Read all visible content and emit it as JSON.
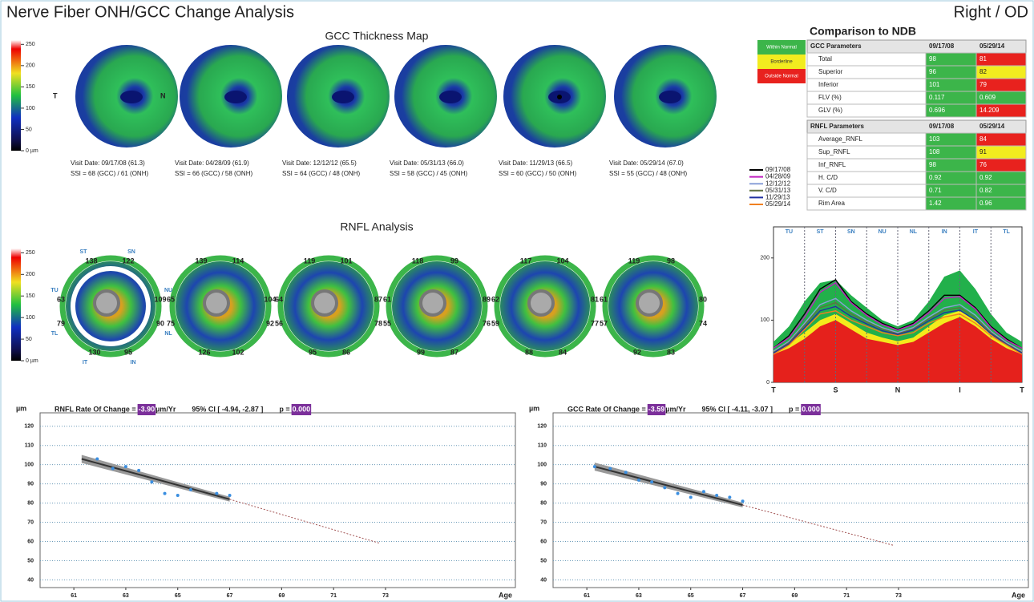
{
  "header": {
    "title": "Nerve Fiber ONH/GCC Change Analysis",
    "eye": "Right / OD"
  },
  "legend": [
    {
      "label": "Within Normal",
      "color": "#3cb54a"
    },
    {
      "label": "Borderline",
      "color": "#f2ec1f"
    },
    {
      "label": "Outside Normal",
      "color": "#e8221e"
    }
  ],
  "gcc_map": {
    "title": "GCC Thickness Map",
    "side_labels": [
      "T",
      "N"
    ],
    "colorbar": {
      "lim": [
        0,
        260
      ],
      "ticks": [
        250,
        200,
        150,
        100,
        50,
        {
          "value": 0,
          "label": "0 µm"
        }
      ]
    },
    "visits": [
      {
        "date": "Visit Date: 09/17/08 (61.3)",
        "ssi": "SSI = 68 (GCC) / 61 (ONH)"
      },
      {
        "date": "Visit Date: 04/28/09 (61.9)",
        "ssi": "SSI = 66 (GCC) / 58 (ONH)"
      },
      {
        "date": "Visit Date: 12/12/12 (65.5)",
        "ssi": "SSI = 64 (GCC) / 48 (ONH)"
      },
      {
        "date": "Visit Date: 05/31/13 (66.0)",
        "ssi": "SSI = 58 (GCC) / 45 (ONH)"
      },
      {
        "date": "Visit Date: 11/29/13 (66.5)",
        "ssi": "SSI = 60 (GCC) / 50 (ONH)"
      },
      {
        "date": "Visit Date: 05/29/14 (67.0)",
        "ssi": "SSI = 55 (GCC) / 48 (ONH)"
      }
    ]
  },
  "ndb": {
    "title": "Comparison to NDB",
    "gcc": {
      "header": [
        "GCC Parameters",
        "09/17/08",
        "05/29/14"
      ],
      "rows": [
        [
          "Total",
          "98",
          "81"
        ],
        [
          "Superior",
          "96",
          "82"
        ],
        [
          "Inferior",
          "101",
          "79"
        ],
        [
          "FLV (%)",
          "0.117",
          "0.609"
        ],
        [
          "GLV (%)",
          "0.696",
          "14.209"
        ]
      ],
      "status": [
        [
          0,
          2
        ],
        [
          0,
          1
        ],
        [
          0,
          2
        ],
        [
          0,
          0
        ],
        [
          0,
          2
        ]
      ]
    },
    "rnfl": {
      "header": [
        "RNFL Parameters",
        "09/17/08",
        "05/29/14"
      ],
      "rows": [
        [
          "Average_RNFL",
          "103",
          "84"
        ],
        [
          "Sup_RNFL",
          "108",
          "91"
        ],
        [
          "Inf_RNFL",
          "98",
          "76"
        ],
        [
          "H. C/D",
          "0.92",
          "0.92"
        ],
        [
          "V. C/D",
          "0.71",
          "0.82"
        ],
        [
          "Rim Area",
          "1.42",
          "0.96"
        ]
      ],
      "status": [
        [
          0,
          2
        ],
        [
          0,
          1
        ],
        [
          0,
          2
        ],
        [
          0,
          0
        ],
        [
          0,
          0
        ],
        [
          0,
          0
        ]
      ]
    }
  },
  "rnfl_map": {
    "title": "RNFL Analysis",
    "colorbar": {
      "lim": [
        0,
        260
      ],
      "ticks": [
        250,
        200,
        150,
        100,
        50,
        {
          "value": 0,
          "label": "0 µm"
        }
      ]
    },
    "sector_names": [
      "ST",
      "SN",
      "TU",
      "NU",
      "TL",
      "NL",
      "IT",
      "IN"
    ],
    "maps": [
      [
        "138",
        "122",
        "63",
        "109",
        "79",
        "90",
        "130",
        "95"
      ],
      [
        "139",
        "114",
        "65",
        "104",
        "75",
        "92",
        "126",
        "102"
      ],
      [
        "119",
        "101",
        "64",
        "87",
        "56",
        "78",
        "95",
        "86"
      ],
      [
        "118",
        "99",
        "61",
        "89",
        "55",
        "76",
        "99",
        "87"
      ],
      [
        "117",
        "104",
        "62",
        "81",
        "59",
        "77",
        "88",
        "84"
      ],
      [
        "119",
        "98",
        "61",
        "80",
        "57",
        "74",
        "92",
        "83"
      ]
    ]
  },
  "chart_data": [
    {
      "type": "line",
      "categories": [
        "T",
        null,
        null,
        null,
        "S",
        null,
        null,
        null,
        "N",
        null,
        null,
        null,
        "I",
        null,
        null,
        null,
        "T"
      ],
      "sector_labels": [
        "TU",
        "ST",
        "SN",
        "NU",
        "NL",
        "IN",
        "IT",
        "TL"
      ],
      "ylim": [
        0,
        250
      ],
      "yticks": [
        0,
        100,
        200
      ],
      "bands": [
        {
          "color": "#22b04b",
          "values": [
            65,
            90,
            130,
            160,
            165,
            140,
            120,
            100,
            90,
            100,
            130,
            170,
            180,
            150,
            110,
            80,
            65
          ]
        },
        {
          "color": "#f4ea1c",
          "values": [
            50,
            62,
            80,
            100,
            110,
            95,
            80,
            72,
            66,
            72,
            90,
            108,
            115,
            100,
            80,
            62,
            50
          ]
        },
        {
          "color": "#e5211c",
          "values": [
            45,
            55,
            70,
            90,
            100,
            85,
            70,
            65,
            60,
            65,
            80,
            95,
            105,
            90,
            70,
            55,
            45
          ]
        }
      ],
      "series": [
        {
          "name": "09/17/08",
          "color": "#000000",
          "values": [
            55,
            75,
            110,
            150,
            165,
            130,
            110,
            95,
            85,
            95,
            115,
            140,
            140,
            120,
            90,
            70,
            55
          ]
        },
        {
          "name": "04/28/09",
          "color": "#c020c0",
          "values": [
            55,
            72,
            105,
            145,
            160,
            128,
            108,
            93,
            84,
            93,
            112,
            135,
            138,
            118,
            88,
            68,
            55
          ]
        },
        {
          "name": "12/12/12",
          "color": "#8aa0d8",
          "values": [
            50,
            66,
            95,
            125,
            135,
            115,
            100,
            88,
            80,
            88,
            105,
            120,
            125,
            108,
            82,
            64,
            50
          ]
        },
        {
          "name": "05/31/13",
          "color": "#607040",
          "values": [
            48,
            64,
            92,
            120,
            128,
            110,
            97,
            86,
            78,
            86,
            102,
            116,
            120,
            104,
            80,
            62,
            48
          ]
        },
        {
          "name": "11/29/13",
          "color": "#2030a0",
          "values": [
            47,
            62,
            88,
            115,
            122,
            106,
            94,
            83,
            77,
            84,
            99,
            112,
            116,
            100,
            78,
            61,
            47
          ]
        },
        {
          "name": "05/29/14",
          "color": "#f08020",
          "values": [
            45,
            60,
            85,
            110,
            115,
            100,
            90,
            80,
            75,
            80,
            95,
            105,
            110,
            95,
            75,
            60,
            45
          ]
        }
      ]
    },
    {
      "type": "scatter",
      "title": "RNFL Rate Of Change =",
      "rate": "-3.90",
      "rate_unit": "µm/Yr",
      "ci": "95% CI [ -4.94, -2.87 ]",
      "p_label": "p =",
      "p_value": "0.000",
      "ylabel": "µm",
      "xlabel": "Age",
      "xlim": [
        59.7,
        78
      ],
      "ylim": [
        36,
        127
      ],
      "xticks": [
        61,
        63,
        65,
        67,
        69,
        71,
        73
      ],
      "yticks": [
        40,
        50,
        60,
        70,
        80,
        90,
        100,
        110,
        120
      ],
      "color": "#3a8ee0",
      "x": [
        61.9,
        62.5,
        63,
        63.5,
        64,
        64.5,
        65,
        65.5,
        66.5,
        67
      ],
      "values": [
        103,
        98,
        99,
        97,
        91,
        85,
        84,
        87,
        85,
        84
      ],
      "trend": {
        "x": [
          61.3,
          67
        ],
        "values": [
          103,
          82
        ]
      },
      "projection": {
        "x": [
          67,
          72.8
        ],
        "values": [
          82,
          59
        ]
      }
    },
    {
      "type": "scatter",
      "title": "GCC Rate Of Change =",
      "rate": "-3.59",
      "rate_unit": "µm/Yr",
      "ci": "95% CI [ -4.11, -3.07 ]",
      "p_label": "p =",
      "p_value": "0.000",
      "ylabel": "µm",
      "xlabel": "Age",
      "xlim": [
        59.7,
        78
      ],
      "ylim": [
        36,
        127
      ],
      "xticks": [
        61,
        63,
        65,
        67,
        69,
        71,
        73
      ],
      "yticks": [
        40,
        50,
        60,
        70,
        80,
        90,
        100,
        110,
        120
      ],
      "color": "#3a8ee0",
      "x": [
        61.3,
        61.9,
        62.5,
        63,
        63.5,
        64,
        64.5,
        65,
        65.5,
        66,
        66.5,
        67
      ],
      "values": [
        99,
        98,
        96,
        92,
        91,
        88,
        85,
        83,
        86,
        84,
        83,
        81
      ],
      "trend": {
        "x": [
          61.3,
          67
        ],
        "values": [
          99,
          79
        ]
      },
      "projection": {
        "x": [
          67,
          72.8
        ],
        "values": [
          79,
          58
        ]
      }
    }
  ]
}
